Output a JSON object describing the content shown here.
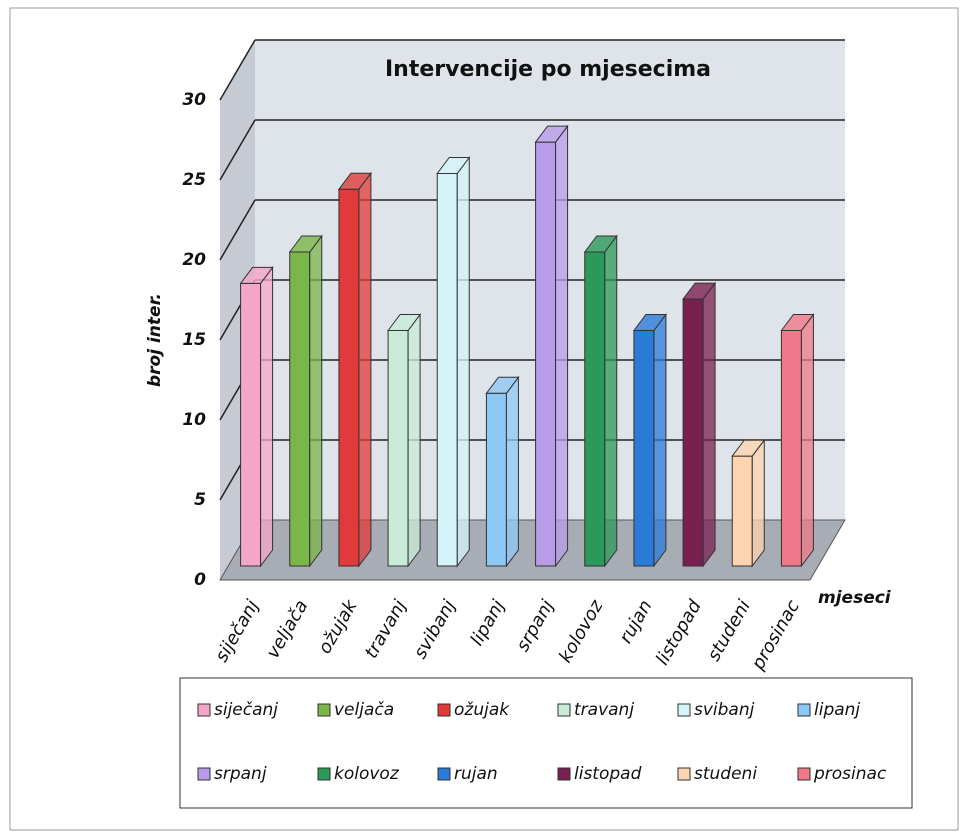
{
  "chart_data": {
    "type": "bar3d",
    "title": "Intervencije po mjesecima",
    "y_label": "broj inter.",
    "x_label": "mjeseci",
    "categories": [
      "siječanj",
      "veljača",
      "ožujak",
      "travanj",
      "svibanj",
      "lipanj",
      "srpanj",
      "kolovoz",
      "rujan",
      "listopad",
      "studeni",
      "prosinac"
    ],
    "values": [
      18,
      20,
      24,
      15,
      25,
      11,
      27,
      20,
      15,
      17,
      7,
      15
    ],
    "colors": [
      "#f4a6c8",
      "#7ab648",
      "#e03a3a",
      "#c8ecd8",
      "#d4f4fa",
      "#8ec8f4",
      "#b89ce8",
      "#2a9a5a",
      "#2a7ad8",
      "#7a2050",
      "#fcd4b0",
      "#f07888"
    ],
    "ylim": [
      0,
      30
    ],
    "yticks": [
      0,
      5,
      10,
      15,
      20,
      25,
      30
    ],
    "grid": true,
    "legend": "bottom"
  }
}
